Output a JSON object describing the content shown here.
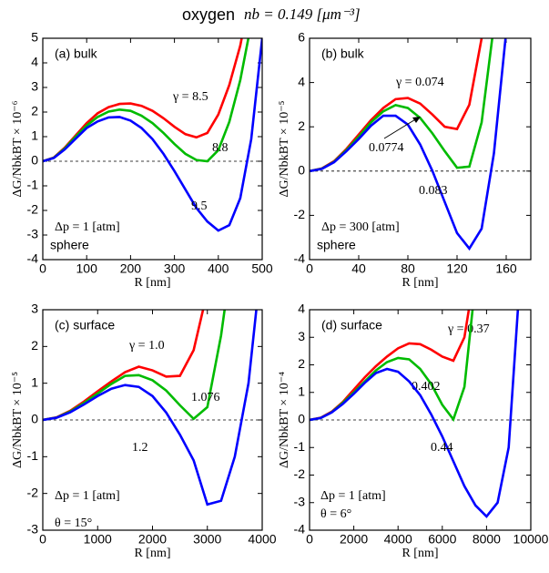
{
  "title": "oxygen",
  "subtitle": "nb = 0.149 [μm⁻³]",
  "chart_data": [
    {
      "type": "line",
      "panel_label": "(a) bulk",
      "xlabel": "R [nm]",
      "ylabel": "ΔG/NbkBT × 10⁻⁶",
      "x": [
        0,
        25,
        50,
        75,
        100,
        125,
        150,
        175,
        200,
        225,
        250,
        275,
        300,
        325,
        350,
        375,
        400,
        425,
        450,
        475,
        500
      ],
      "series": [
        {
          "color": "#ff0000",
          "label": "γ = 8.5",
          "values": [
            0,
            0.15,
            0.55,
            1.05,
            1.55,
            1.95,
            2.2,
            2.33,
            2.35,
            2.25,
            2.05,
            1.75,
            1.4,
            1.1,
            0.97,
            1.15,
            1.9,
            3.1,
            4.7,
            7,
            null
          ]
        },
        {
          "color": "#00bb00",
          "label": "8.8",
          "values": [
            0,
            0.14,
            0.52,
            1.0,
            1.45,
            1.8,
            2.02,
            2.1,
            2.05,
            1.85,
            1.55,
            1.15,
            0.7,
            0.3,
            0.05,
            0.0,
            0.45,
            1.6,
            3.3,
            5.6,
            null
          ]
        },
        {
          "color": "#0000ff",
          "label": "9.5",
          "values": [
            0,
            0.13,
            0.48,
            0.92,
            1.35,
            1.62,
            1.78,
            1.8,
            1.65,
            1.35,
            0.9,
            0.3,
            -0.4,
            -1.15,
            -1.9,
            -2.45,
            -2.82,
            -2.6,
            -1.5,
            0.9,
            5.0
          ]
        }
      ],
      "xlim": [
        0,
        500
      ],
      "ylim": [
        -4,
        5
      ],
      "xticks": [
        0,
        100,
        200,
        300,
        400,
        500
      ],
      "yticks": [
        -4,
        -3,
        -2,
        -1,
        0,
        1,
        2,
        3,
        4,
        5
      ],
      "notes": [
        "Δp = 1 [atm]",
        "sphere"
      ],
      "zero_line": true
    },
    {
      "type": "line",
      "panel_label": "(b) bulk",
      "xlabel": "R [nm]",
      "ylabel": "ΔG/NbkBT × 10⁻⁵",
      "x": [
        0,
        10,
        20,
        30,
        40,
        50,
        60,
        70,
        80,
        90,
        100,
        110,
        120,
        130,
        140,
        150,
        160,
        170,
        180
      ],
      "series": [
        {
          "color": "#ff0000",
          "label": "γ = 0.074",
          "values": [
            0,
            0.12,
            0.45,
            1.0,
            1.65,
            2.3,
            2.85,
            3.25,
            3.3,
            3.05,
            2.55,
            2.0,
            1.9,
            3.0,
            6.0,
            null,
            null,
            null,
            null
          ]
        },
        {
          "color": "#00bb00",
          "label": "0.0774",
          "values": [
            0,
            0.11,
            0.42,
            0.95,
            1.55,
            2.2,
            2.7,
            2.98,
            2.85,
            2.4,
            1.7,
            0.9,
            0.15,
            0.2,
            2.2,
            6.6,
            null,
            null,
            null
          ]
        },
        {
          "color": "#0000ff",
          "label": "0.083",
          "values": [
            0,
            0.1,
            0.4,
            0.9,
            1.45,
            2.05,
            2.5,
            2.5,
            2.1,
            1.2,
            0.0,
            -1.4,
            -2.8,
            -3.5,
            -2.6,
            0.8,
            6.3,
            null,
            null
          ]
        }
      ],
      "xlim": [
        0,
        180
      ],
      "ylim": [
        -4,
        6
      ],
      "xticks": [
        0,
        40,
        80,
        120,
        160
      ],
      "yticks": [
        -4,
        -2,
        0,
        2,
        4,
        6
      ],
      "notes": [
        "Δp = 300 [atm]",
        "sphere"
      ],
      "zero_line": true
    },
    {
      "type": "line",
      "panel_label": "(c) surface",
      "xlabel": "R [nm]",
      "ylabel": "ΔG/NbkBT × 10⁻⁵",
      "x": [
        0,
        250,
        500,
        750,
        1000,
        1250,
        1500,
        1750,
        2000,
        2250,
        2500,
        2750,
        3000,
        3250,
        3500,
        3750,
        4000
      ],
      "series": [
        {
          "color": "#ff0000",
          "label": "γ = 1.0",
          "values": [
            0,
            0.07,
            0.25,
            0.5,
            0.78,
            1.05,
            1.3,
            1.45,
            1.35,
            1.18,
            1.2,
            1.9,
            3.5,
            null,
            null,
            null,
            null
          ]
        },
        {
          "color": "#00bb00",
          "label": "1.076",
          "values": [
            0,
            0.065,
            0.23,
            0.46,
            0.72,
            0.98,
            1.2,
            1.22,
            1.08,
            0.8,
            0.4,
            0.03,
            0.35,
            2.3,
            5,
            null,
            null
          ]
        },
        {
          "color": "#0000ff",
          "label": "1.2",
          "values": [
            0,
            0.06,
            0.21,
            0.42,
            0.65,
            0.85,
            0.95,
            0.9,
            0.65,
            0.2,
            -0.4,
            -1.1,
            -2.3,
            -2.2,
            -1.0,
            1.0,
            4.5
          ]
        }
      ],
      "xlim": [
        0,
        4000
      ],
      "ylim": [
        -3,
        3
      ],
      "xticks": [
        0,
        1000,
        2000,
        3000,
        4000
      ],
      "yticks": [
        -3,
        -2,
        -1,
        0,
        1,
        2,
        3
      ],
      "notes": [
        "Δp = 1 [atm]",
        "θ = 15°"
      ],
      "zero_line": true
    },
    {
      "type": "line",
      "panel_label": "(d) surface",
      "xlabel": "R [nm]",
      "ylabel": "ΔG/NbkBT × 10⁻⁴",
      "x": [
        0,
        500,
        1000,
        1500,
        2000,
        2500,
        3000,
        3500,
        4000,
        4500,
        5000,
        5500,
        6000,
        6500,
        7000,
        7500,
        8000,
        8500,
        9000,
        9500,
        10000
      ],
      "series": [
        {
          "color": "#ff0000",
          "label": "γ = 0.37",
          "values": [
            0,
            0.08,
            0.3,
            0.65,
            1.1,
            1.55,
            1.95,
            2.3,
            2.6,
            2.78,
            2.75,
            2.55,
            2.3,
            2.15,
            3.0,
            5.5,
            null,
            null,
            null,
            null,
            null
          ]
        },
        {
          "color": "#00bb00",
          "label": "0.402",
          "values": [
            0,
            0.07,
            0.28,
            0.62,
            1.0,
            1.4,
            1.8,
            2.1,
            2.25,
            2.2,
            1.85,
            1.3,
            0.55,
            0.02,
            1.2,
            5,
            null,
            null,
            null,
            null,
            null
          ]
        },
        {
          "color": "#0000ff",
          "label": "0.44",
          "values": [
            0,
            0.07,
            0.27,
            0.58,
            0.95,
            1.35,
            1.7,
            1.85,
            1.75,
            1.4,
            0.9,
            0.2,
            -0.6,
            -1.5,
            -2.4,
            -3.1,
            -3.5,
            -3.0,
            -1.0,
            5.0,
            null
          ]
        }
      ],
      "xlim": [
        0,
        10000
      ],
      "ylim": [
        -4,
        4
      ],
      "xticks": [
        0,
        2000,
        4000,
        6000,
        8000,
        10000
      ],
      "yticks": [
        -4,
        -3,
        -2,
        -1,
        0,
        1,
        2,
        3,
        4
      ],
      "notes": [
        "Δp = 1 [atm]",
        "θ = 6°"
      ],
      "zero_line": true
    }
  ]
}
